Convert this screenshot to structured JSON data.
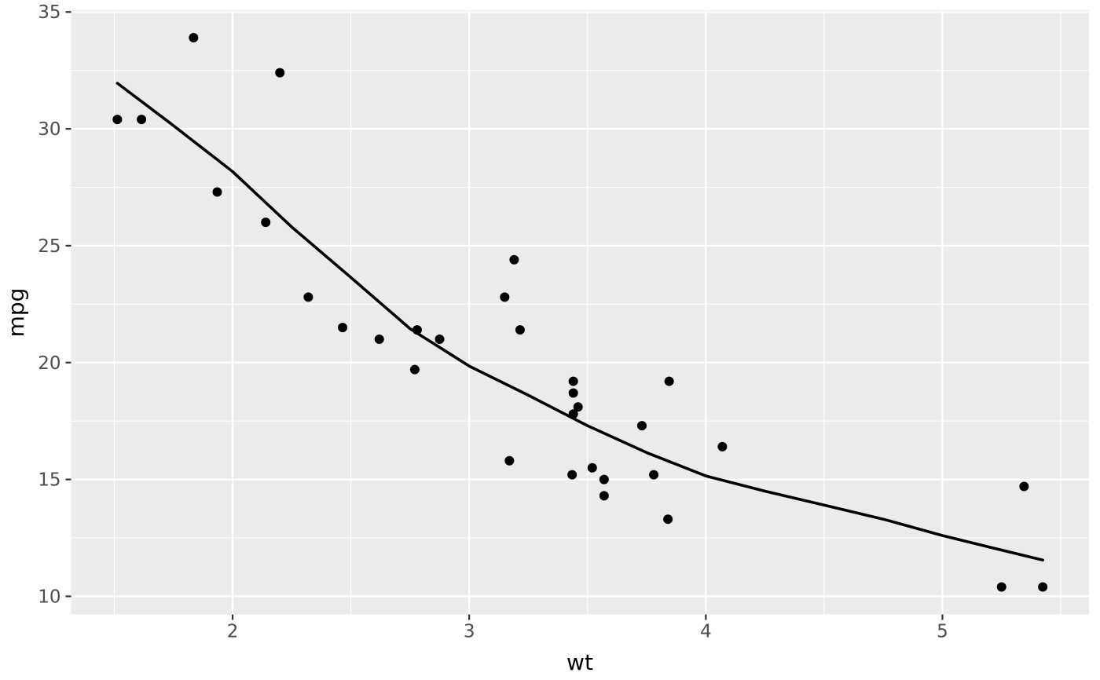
{
  "chart_data": {
    "type": "scatter",
    "title": "",
    "xlabel": "wt",
    "ylabel": "mpg",
    "x_domain": [
      1.3175,
      5.6195
    ],
    "y_domain": [
      9.225,
      35.075
    ],
    "x_ticks": [
      "2",
      "3",
      "4",
      "5"
    ],
    "x_tick_values": [
      2,
      3,
      4,
      5
    ],
    "y_ticks": [
      "10",
      "15",
      "20",
      "25",
      "30",
      "35"
    ],
    "y_tick_values": [
      10,
      15,
      20,
      25,
      30,
      35
    ],
    "x_minor_ticks": [
      1.5,
      2.5,
      3.5,
      4.5,
      5.5
    ],
    "y_minor_ticks": [
      12.5,
      17.5,
      22.5,
      27.5,
      32.5
    ],
    "grid": "on",
    "legend": "none",
    "points": [
      {
        "wt": 2.62,
        "mpg": 21.0
      },
      {
        "wt": 2.875,
        "mpg": 21.0
      },
      {
        "wt": 2.32,
        "mpg": 22.8
      },
      {
        "wt": 3.215,
        "mpg": 21.4
      },
      {
        "wt": 3.44,
        "mpg": 18.7
      },
      {
        "wt": 3.46,
        "mpg": 18.1
      },
      {
        "wt": 3.57,
        "mpg": 14.3
      },
      {
        "wt": 3.19,
        "mpg": 24.4
      },
      {
        "wt": 3.15,
        "mpg": 22.8
      },
      {
        "wt": 3.44,
        "mpg": 19.2
      },
      {
        "wt": 3.44,
        "mpg": 17.8
      },
      {
        "wt": 4.07,
        "mpg": 16.4
      },
      {
        "wt": 3.73,
        "mpg": 17.3
      },
      {
        "wt": 3.78,
        "mpg": 15.2
      },
      {
        "wt": 5.25,
        "mpg": 10.4
      },
      {
        "wt": 5.424,
        "mpg": 10.4
      },
      {
        "wt": 5.345,
        "mpg": 14.7
      },
      {
        "wt": 2.2,
        "mpg": 32.4
      },
      {
        "wt": 1.615,
        "mpg": 30.4
      },
      {
        "wt": 1.835,
        "mpg": 33.9
      },
      {
        "wt": 2.465,
        "mpg": 21.5
      },
      {
        "wt": 3.52,
        "mpg": 15.5
      },
      {
        "wt": 3.435,
        "mpg": 15.2
      },
      {
        "wt": 3.84,
        "mpg": 13.3
      },
      {
        "wt": 3.845,
        "mpg": 19.2
      },
      {
        "wt": 1.935,
        "mpg": 27.3
      },
      {
        "wt": 2.14,
        "mpg": 26.0
      },
      {
        "wt": 1.513,
        "mpg": 30.4
      },
      {
        "wt": 3.17,
        "mpg": 15.8
      },
      {
        "wt": 2.77,
        "mpg": 19.7
      },
      {
        "wt": 3.57,
        "mpg": 15.0
      },
      {
        "wt": 2.78,
        "mpg": 21.4
      }
    ],
    "smooth_line": [
      {
        "wt": 1.513,
        "mpg": 31.95
      },
      {
        "wt": 1.737,
        "mpg": 30.24
      },
      {
        "wt": 2.0,
        "mpg": 28.17
      },
      {
        "wt": 2.25,
        "mpg": 25.8
      },
      {
        "wt": 2.5,
        "mpg": 23.64
      },
      {
        "wt": 2.75,
        "mpg": 21.45
      },
      {
        "wt": 3.0,
        "mpg": 19.85
      },
      {
        "wt": 3.25,
        "mpg": 18.6
      },
      {
        "wt": 3.5,
        "mpg": 17.3
      },
      {
        "wt": 3.75,
        "mpg": 16.15
      },
      {
        "wt": 4.0,
        "mpg": 15.15
      },
      {
        "wt": 4.25,
        "mpg": 14.5
      },
      {
        "wt": 4.5,
        "mpg": 13.9
      },
      {
        "wt": 4.75,
        "mpg": 13.3
      },
      {
        "wt": 5.0,
        "mpg": 12.6
      },
      {
        "wt": 5.2,
        "mpg": 12.1
      },
      {
        "wt": 5.424,
        "mpg": 11.55
      }
    ],
    "colors": {
      "panel_background": "#EBEBEB",
      "gridline": "#FFFFFF",
      "point": "#000000",
      "smooth_line": "#000000",
      "tick_mark": "#333333",
      "tick_text": "#4D4D4D",
      "axis_title_text": "#000000",
      "page_background": "#FFFFFF"
    }
  }
}
